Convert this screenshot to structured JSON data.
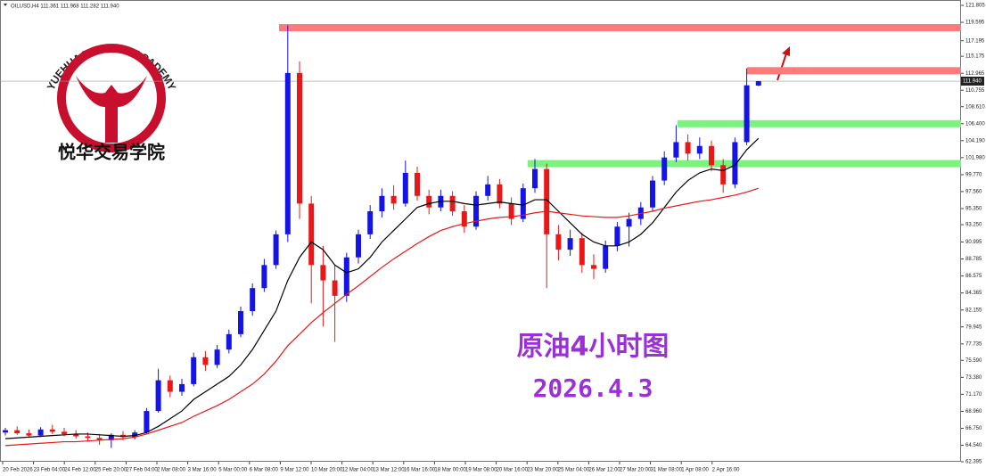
{
  "chart_data": {
    "type": "candlestick",
    "title": "OILUSD,H4 111.361 111.968 111.282 111.940",
    "logo_text": "YUEHUA TRADING ACADEMY",
    "logo_cn": "悦华交易学院",
    "annotations": [
      "原油4小时图",
      "2026.4.3"
    ],
    "up_color": "#1414e6",
    "down_color": "#e81818",
    "ylim": [
      62.395,
      121.805
    ],
    "yticks": [
      121.805,
      119.595,
      117.195,
      115.175,
      112.965,
      110.755,
      {
        "value": 108.61,
        "label": "108.610"
      },
      {
        "value": 106.4,
        "label": "106.400"
      },
      {
        "value": 104.19,
        "label": "104.190"
      },
      {
        "value": 101.98,
        "label": "101.980"
      },
      {
        "value": 99.77,
        "label": "99.770"
      },
      {
        "value": 97.56,
        "label": "97.560"
      },
      {
        "value": 95.35,
        "label": "95.350"
      },
      {
        "value": 93.25,
        "label": "93.250"
      },
      90.995,
      88.785,
      86.575,
      84.365,
      82.155,
      79.945,
      77.735,
      {
        "value": 75.59,
        "label": "75.590"
      },
      {
        "value": 73.38,
        "label": "73.380"
      },
      {
        "value": 71.17,
        "label": "71.170"
      },
      {
        "value": 68.96,
        "label": "68.960"
      },
      {
        "value": 66.75,
        "label": "66.750"
      },
      {
        "value": 64.54,
        "label": "64.540"
      },
      62.395
    ],
    "x_labels": [
      "20 Feb 2026",
      "23 Feb 04:00",
      "24 Feb 12:00",
      "25 Feb 20:00",
      "27 Feb 04:00",
      "2 Mar 08:00",
      "3 Mar 16:00",
      "5 Mar 00:00",
      "6 Mar 08:00",
      "9 Mar 12:00",
      "10 Mar 20:00",
      "12 Mar 04:00",
      "13 Mar 12:00",
      "16 Mar 16:00",
      "18 Mar 00:00",
      "19 Mar 08:00",
      "20 Mar 16:00",
      "23 Mar 20:00",
      "25 Mar 04:00",
      "26 Mar 12:00",
      "27 Mar 20:00",
      "31 Mar 08:00",
      "1 Apr 08:00",
      "2 Apr 16:00"
    ],
    "price_label": {
      "value": 111.94,
      "label": "111.940"
    },
    "levels": [
      {
        "value": 118.9,
        "color": "#ff7b7b"
      },
      {
        "value": 113.3,
        "color": "#ff7b7b"
      },
      {
        "value": 106.4,
        "color": "#7ef27e"
      },
      {
        "value": 101.2,
        "color": "#7ef27e"
      }
    ],
    "ohlc": [
      [
        66.2,
        66.8,
        65.8,
        66.5
      ],
      [
        66.5,
        67.0,
        65.9,
        66.1
      ],
      [
        66.1,
        66.6,
        65.5,
        65.8
      ],
      [
        65.8,
        66.9,
        65.6,
        66.6
      ],
      [
        66.6,
        67.2,
        66.0,
        66.3
      ],
      [
        66.3,
        66.8,
        65.7,
        66.0
      ],
      [
        66.0,
        66.5,
        65.4,
        65.7
      ],
      [
        65.7,
        66.2,
        65.0,
        65.5
      ],
      [
        65.5,
        66.0,
        64.6,
        65.2
      ],
      [
        65.2,
        66.1,
        64.2,
        65.9
      ],
      [
        65.9,
        66.4,
        65.2,
        65.6
      ],
      [
        65.6,
        66.5,
        65.3,
        66.2
      ],
      [
        66.2,
        69.4,
        66.0,
        69.0
      ],
      [
        69.0,
        74.5,
        68.8,
        73.0
      ],
      [
        73.0,
        73.6,
        70.8,
        71.5
      ],
      [
        71.5,
        73.2,
        71.0,
        72.5
      ],
      [
        72.5,
        76.6,
        72.2,
        76.0
      ],
      [
        76.0,
        76.8,
        74.2,
        75.0
      ],
      [
        75.0,
        77.6,
        74.6,
        77.0
      ],
      [
        77.0,
        79.6,
        76.5,
        79.0
      ],
      [
        79.0,
        82.6,
        78.6,
        82.0
      ],
      [
        82.0,
        85.6,
        81.4,
        85.0
      ],
      [
        85.0,
        88.8,
        84.5,
        88.0
      ],
      [
        88.0,
        92.5,
        87.5,
        92.0
      ],
      [
        92.0,
        119.2,
        91.0,
        113.0
      ],
      [
        113.0,
        114.5,
        94.0,
        96.0
      ],
      [
        96.0,
        97.0,
        83.0,
        88.0
      ],
      [
        88.0,
        90.5,
        80.0,
        86.0
      ],
      [
        86.0,
        88.0,
        78.0,
        84.0
      ],
      [
        84.0,
        89.6,
        83.2,
        89.0
      ],
      [
        89.0,
        92.6,
        88.2,
        92.0
      ],
      [
        92.0,
        95.8,
        91.4,
        95.0
      ],
      [
        95.0,
        98.0,
        94.2,
        97.0
      ],
      [
        97.0,
        98.4,
        95.2,
        96.0
      ],
      [
        96.0,
        101.6,
        95.6,
        100.0
      ],
      [
        100.0,
        100.8,
        96.4,
        97.0
      ],
      [
        97.0,
        97.8,
        94.6,
        95.5
      ],
      [
        95.5,
        97.8,
        95.0,
        97.0
      ],
      [
        97.0,
        97.6,
        94.4,
        95.0
      ],
      [
        95.0,
        95.8,
        92.2,
        93.0
      ],
      [
        93.0,
        97.6,
        92.6,
        97.0
      ],
      [
        97.0,
        99.6,
        96.4,
        98.5
      ],
      [
        98.5,
        99.2,
        95.4,
        96.0
      ],
      [
        96.0,
        96.8,
        93.2,
        94.0
      ],
      [
        94.0,
        98.6,
        93.6,
        98.0
      ],
      [
        98.0,
        101.8,
        97.4,
        100.5
      ],
      [
        100.5,
        101.2,
        85.0,
        92.0
      ],
      [
        92.0,
        93.2,
        88.6,
        90.0
      ],
      [
        90.0,
        92.6,
        89.2,
        91.5
      ],
      [
        91.5,
        92.2,
        87.0,
        88.0
      ],
      [
        88.0,
        89.4,
        86.2,
        87.5
      ],
      [
        87.5,
        91.2,
        87.0,
        90.5
      ],
      [
        90.5,
        93.6,
        89.8,
        93.0
      ],
      [
        93.0,
        94.8,
        90.4,
        94.0
      ],
      [
        94.0,
        96.2,
        93.2,
        95.5
      ],
      [
        95.5,
        99.6,
        95.0,
        99.0
      ],
      [
        99.0,
        102.8,
        98.4,
        102.0
      ],
      [
        102.0,
        106.2,
        101.4,
        104.0
      ],
      [
        104.0,
        105.0,
        101.6,
        102.5
      ],
      [
        102.5,
        104.6,
        101.8,
        103.5
      ],
      [
        103.5,
        104.2,
        100.2,
        101.0
      ],
      [
        101.0,
        101.8,
        97.4,
        98.5
      ],
      [
        98.5,
        104.6,
        98.0,
        104.0
      ],
      [
        104.0,
        113.6,
        103.6,
        111.4
      ],
      [
        111.361,
        111.968,
        111.282,
        111.94
      ]
    ],
    "series": [
      {
        "color": "#000000",
        "values": [
          65.4,
          65.5,
          65.6,
          65.7,
          65.8,
          65.9,
          66.0,
          66.0,
          65.9,
          65.8,
          65.7,
          65.8,
          66.2,
          67.0,
          68.0,
          69.0,
          70.5,
          71.5,
          72.5,
          73.5,
          75.0,
          77.0,
          79.5,
          82.0,
          86.0,
          89.0,
          91.0,
          90.0,
          88.0,
          87.0,
          87.5,
          89.0,
          91.0,
          92.5,
          94.0,
          95.5,
          96.0,
          96.3,
          96.3,
          96.0,
          95.8,
          96.0,
          96.2,
          96.0,
          95.8,
          96.5,
          96.5,
          95.0,
          93.5,
          92.0,
          91.0,
          90.5,
          90.5,
          91.0,
          92.0,
          93.5,
          95.5,
          97.5,
          99.0,
          100.0,
          100.5,
          100.3,
          101.0,
          103.0,
          104.5
        ]
      },
      {
        "color": "#e81818",
        "values": [
          64.5,
          64.6,
          64.7,
          64.8,
          64.9,
          65.0,
          65.0,
          65.1,
          65.2,
          65.3,
          65.4,
          65.6,
          66.0,
          66.5,
          67.0,
          67.5,
          68.3,
          69.0,
          69.7,
          70.5,
          71.5,
          72.5,
          73.8,
          75.5,
          77.5,
          79.0,
          80.5,
          81.8,
          83.0,
          84.2,
          85.3,
          86.5,
          87.7,
          88.8,
          89.8,
          90.8,
          91.7,
          92.5,
          93.0,
          93.4,
          93.7,
          94.0,
          94.2,
          94.3,
          94.5,
          94.8,
          95.0,
          94.8,
          94.6,
          94.4,
          94.3,
          94.2,
          94.2,
          94.4,
          94.7,
          95.0,
          95.4,
          95.7,
          96.0,
          96.3,
          96.5,
          96.8,
          97.1,
          97.5,
          98.0
        ]
      }
    ]
  }
}
